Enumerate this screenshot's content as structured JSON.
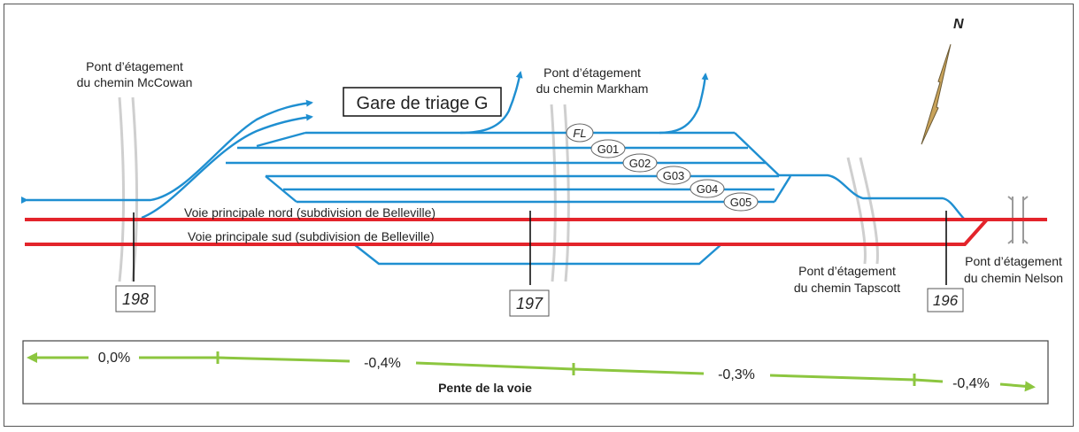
{
  "yard_title": "Gare de triage G",
  "north": "N",
  "overpasses": {
    "mccowan": [
      "Pont d’étagement",
      "du chemin McCowan"
    ],
    "markham": [
      "Pont d’étagement",
      "du chemin Markham"
    ],
    "tapscott": [
      "Pont d’étagement",
      "du chemin Tapscott"
    ],
    "nelson": [
      "Pont d’étagement",
      "du chemin Nelson"
    ]
  },
  "main_tracks": {
    "north": "Voie principale nord (subdivision de Belleville)",
    "south": "Voie principale sud (subdivision de Belleville)"
  },
  "track_labels": [
    "FL",
    "G01",
    "G02",
    "G03",
    "G04",
    "G05"
  ],
  "mileposts": [
    "198",
    "197",
    "196"
  ],
  "grade": {
    "title": "Pente de la voie",
    "segments": [
      "0,0%",
      "-0,4%",
      "-0,3%",
      "-0,4%"
    ]
  },
  "colors": {
    "yard_track": "#1f8fd1",
    "main_track": "#e3242b",
    "grade_line": "#8cc63f",
    "overpass": "#c8c8c8",
    "north_arrow": "#c9a35a"
  }
}
